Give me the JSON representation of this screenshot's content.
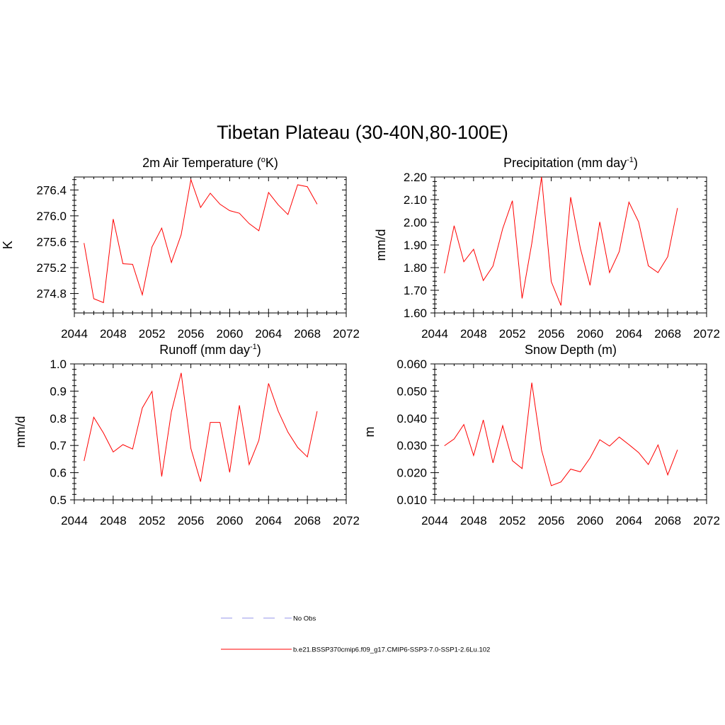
{
  "figure_title": "Tibetan Plateau (30-40N,80-100E)",
  "colors": {
    "model": "#ff0000",
    "obs": "#aaaaee"
  },
  "chart_data": [
    {
      "type": "line",
      "title": "2m Air Temperature (",
      "title_sup": "o",
      "title_end": "K)",
      "ylabel": "K",
      "xlim": [
        2044,
        2072
      ],
      "ylim": [
        274.5,
        276.6
      ],
      "xticks": [
        2044,
        2048,
        2052,
        2056,
        2060,
        2064,
        2068,
        2072
      ],
      "xtick_labels": [
        "2044",
        "2048",
        "2052",
        "2056",
        "2060",
        "2064",
        "2068",
        "2072"
      ],
      "yticks": [
        274.8,
        275.2,
        275.6,
        276.0,
        276.4
      ],
      "ytick_labels": [
        "274.8",
        "275.2",
        "275.6",
        "276.0",
        "276.4"
      ],
      "series": [
        {
          "x": [
            2045,
            2046,
            2047,
            2048,
            2049,
            2050,
            2051,
            2052,
            2053,
            2054,
            2055,
            2056,
            2057,
            2058,
            2059,
            2060,
            2061,
            2062,
            2063,
            2064,
            2065,
            2066,
            2067,
            2068,
            2069
          ],
          "values": [
            275.58,
            274.72,
            274.66,
            275.95,
            275.26,
            275.25,
            274.78,
            275.52,
            275.81,
            275.28,
            275.71,
            276.56,
            276.13,
            276.35,
            276.18,
            276.08,
            276.04,
            275.88,
            275.77,
            276.36,
            276.17,
            276.02,
            276.48,
            276.45,
            276.18
          ]
        }
      ]
    },
    {
      "type": "line",
      "title": "Precipitation (mm day",
      "title_sup": "-1",
      "title_end": ")",
      "ylabel": "mm/d",
      "xlim": [
        2044,
        2072
      ],
      "ylim": [
        1.6,
        2.2
      ],
      "xticks": [
        2044,
        2048,
        2052,
        2056,
        2060,
        2064,
        2068,
        2072
      ],
      "xtick_labels": [
        "2044",
        "2048",
        "2052",
        "2056",
        "2060",
        "2064",
        "2068",
        "2072"
      ],
      "yticks": [
        1.6,
        1.7,
        1.8,
        1.9,
        2.0,
        2.1,
        2.2
      ],
      "ytick_labels": [
        "1.60",
        "1.70",
        "1.80",
        "1.90",
        "2.00",
        "2.10",
        "2.20"
      ],
      "series": [
        {
          "x": [
            2045,
            2046,
            2047,
            2048,
            2049,
            2050,
            2051,
            2052,
            2053,
            2054,
            2055,
            2056,
            2057,
            2058,
            2059,
            2060,
            2061,
            2062,
            2063,
            2064,
            2065,
            2066,
            2067,
            2068,
            2069
          ],
          "values": [
            1.775,
            1.985,
            1.826,
            1.881,
            1.743,
            1.807,
            1.972,
            2.095,
            1.664,
            1.907,
            2.2,
            1.738,
            1.633,
            2.111,
            1.885,
            1.722,
            2.002,
            1.778,
            1.871,
            2.089,
            2.002,
            1.808,
            1.778,
            1.848,
            2.063
          ]
        }
      ]
    },
    {
      "type": "line",
      "title": "Runoff (mm day",
      "title_sup": "-1",
      "title_end": ")",
      "ylabel": "mm/d",
      "xlim": [
        2044,
        2072
      ],
      "ylim": [
        0.5,
        1.0
      ],
      "xticks": [
        2044,
        2048,
        2052,
        2056,
        2060,
        2064,
        2068,
        2072
      ],
      "xtick_labels": [
        "2044",
        "2048",
        "2052",
        "2056",
        "2060",
        "2064",
        "2068",
        "2072"
      ],
      "yticks": [
        0.5,
        0.6,
        0.7,
        0.8,
        0.9,
        1.0
      ],
      "ytick_labels": [
        "0.5",
        "0.6",
        "0.7",
        "0.8",
        "0.9",
        "1.0"
      ],
      "series": [
        {
          "x": [
            2045,
            2046,
            2047,
            2048,
            2049,
            2050,
            2051,
            2052,
            2053,
            2054,
            2055,
            2056,
            2057,
            2058,
            2059,
            2060,
            2061,
            2062,
            2063,
            2064,
            2065,
            2066,
            2067,
            2068,
            2069
          ],
          "values": [
            0.643,
            0.804,
            0.746,
            0.676,
            0.703,
            0.687,
            0.838,
            0.899,
            0.586,
            0.824,
            0.967,
            0.689,
            0.567,
            0.785,
            0.785,
            0.601,
            0.848,
            0.63,
            0.719,
            0.928,
            0.826,
            0.749,
            0.693,
            0.658,
            0.826
          ]
        }
      ]
    },
    {
      "type": "line",
      "title": "Snow Depth (m)",
      "title_sup": "",
      "title_end": "",
      "ylabel": "m",
      "xlim": [
        2044,
        2072
      ],
      "ylim": [
        0.01,
        0.06
      ],
      "xticks": [
        2044,
        2048,
        2052,
        2056,
        2060,
        2064,
        2068,
        2072
      ],
      "xtick_labels": [
        "2044",
        "2048",
        "2052",
        "2056",
        "2060",
        "2064",
        "2068",
        "2072"
      ],
      "yticks": [
        0.01,
        0.02,
        0.03,
        0.04,
        0.05,
        0.06
      ],
      "ytick_labels": [
        "0.010",
        "0.020",
        "0.030",
        "0.040",
        "0.050",
        "0.060"
      ],
      "series": [
        {
          "x": [
            2045,
            2046,
            2047,
            2048,
            2049,
            2050,
            2051,
            2052,
            2053,
            2054,
            2055,
            2056,
            2057,
            2058,
            2059,
            2060,
            2061,
            2062,
            2063,
            2064,
            2065,
            2066,
            2067,
            2068,
            2069
          ],
          "values": [
            0.0299,
            0.0324,
            0.0377,
            0.0263,
            0.0394,
            0.0236,
            0.0373,
            0.0244,
            0.0215,
            0.0531,
            0.0283,
            0.0152,
            0.0166,
            0.0213,
            0.0203,
            0.0254,
            0.0321,
            0.0298,
            0.0331,
            0.0303,
            0.0274,
            0.023,
            0.0302,
            0.0192,
            0.0284
          ]
        }
      ]
    }
  ],
  "legend": [
    {
      "label": "No Obs",
      "style": "dashed",
      "color": "#aaaaee"
    },
    {
      "label": "b.e21.BSSP370cmip6.f09_g17.CMIP6-SSP3-7.0-SSP1-2.6Lu.102",
      "style": "solid",
      "color": "#ff0000"
    }
  ]
}
